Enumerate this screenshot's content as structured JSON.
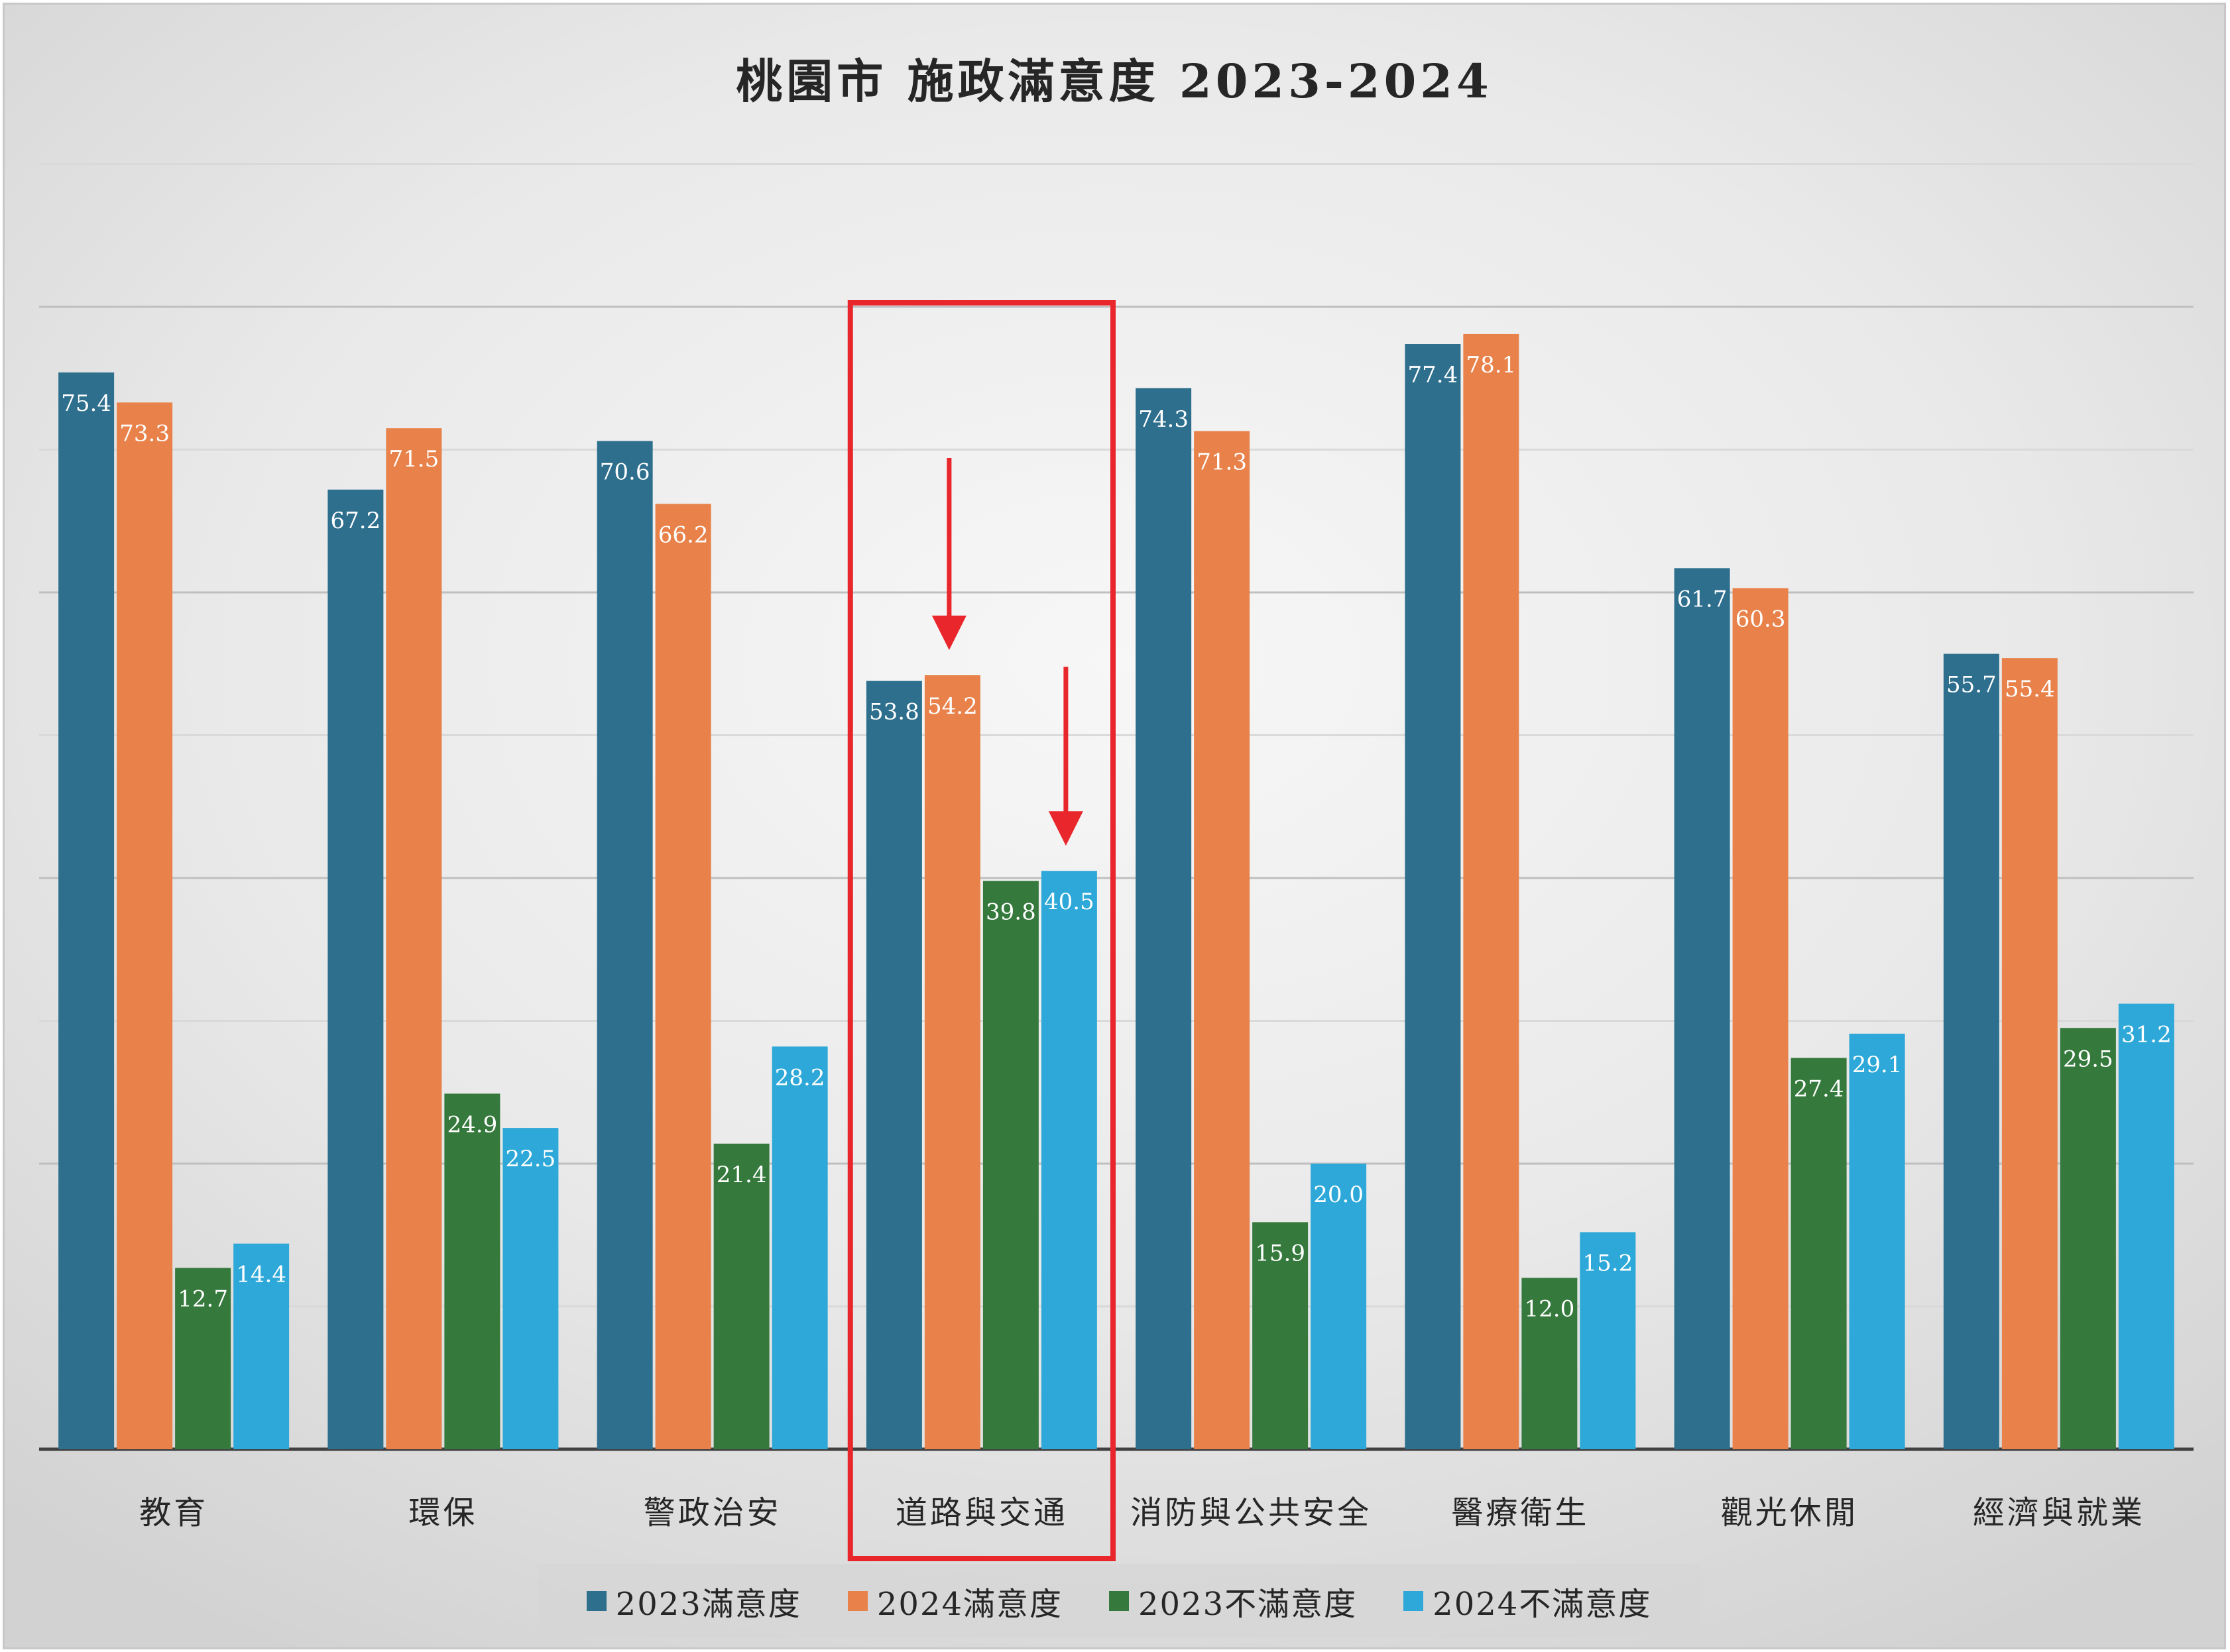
{
  "chart_data": {
    "type": "bar",
    "title": "桃園市 施政滿意度 2023-2024",
    "categories": [
      "教育",
      "環保",
      "警政治安",
      "道路與交通",
      "消防與公共安全",
      "醫療衛生",
      "觀光休閒",
      "經濟與就業"
    ],
    "series": [
      {
        "name": "2023滿意度",
        "color": "#2e6f8e",
        "values": [
          75.4,
          67.2,
          70.6,
          53.8,
          74.3,
          77.4,
          61.7,
          55.7
        ]
      },
      {
        "name": "2024滿意度",
        "color": "#e8824a",
        "values": [
          73.3,
          71.5,
          66.2,
          54.2,
          71.3,
          78.1,
          60.3,
          55.4
        ]
      },
      {
        "name": "2023不滿意度",
        "color": "#357a3c",
        "values": [
          12.7,
          24.9,
          21.4,
          39.8,
          15.9,
          12.0,
          27.4,
          29.5
        ]
      },
      {
        "name": "2024不滿意度",
        "color": "#2ea8d8",
        "values": [
          14.4,
          22.5,
          28.2,
          40.5,
          20.0,
          15.2,
          29.1,
          31.2
        ]
      }
    ],
    "ylim": [
      0,
      90
    ],
    "gridlines": true,
    "legend_position": "bottom",
    "highlight": {
      "category": "道路與交通",
      "color": "#e8262b",
      "arrows_at_series": [
        "2024滿意度",
        "2024不滿意度"
      ]
    }
  }
}
